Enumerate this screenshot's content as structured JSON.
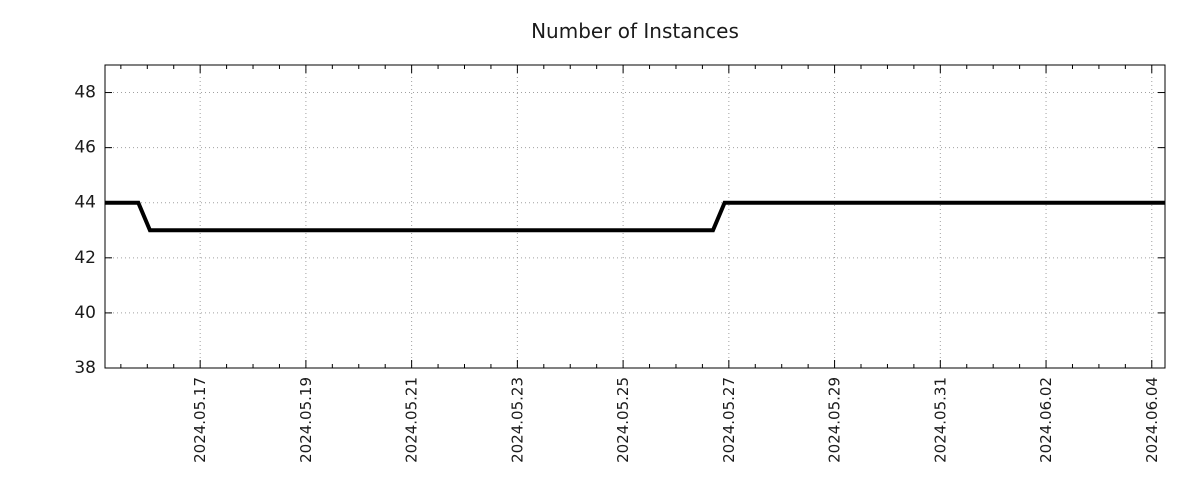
{
  "page": {
    "background": "#ffffff"
  },
  "chart_data": {
    "type": "line",
    "title": "Number of Instances",
    "xlabel": "",
    "ylabel": "",
    "grid": true,
    "legend_position": "none",
    "frame": "box-with-mirrored-ticks",
    "colors": {
      "line": "#000000",
      "grid": "#a0a0a0",
      "frame": "#000000",
      "text": "#1a1a1a",
      "background": "#ffffff"
    },
    "x_axis": {
      "kind": "datetime",
      "epoch": "2024-05-15 00:00",
      "range_days": [
        0.2,
        20.25
      ],
      "range_labels": [
        "2024.05.15 05:00",
        "2024.06.04 06:00"
      ],
      "minor_tick_interval_days": 0.5,
      "major_ticks": [
        {
          "days": 2,
          "label": "2024.05.17"
        },
        {
          "days": 4,
          "label": "2024.05.19"
        },
        {
          "days": 6,
          "label": "2024.05.21"
        },
        {
          "days": 8,
          "label": "2024.05.23"
        },
        {
          "days": 10,
          "label": "2024.05.25"
        },
        {
          "days": 12,
          "label": "2024.05.27"
        },
        {
          "days": 14,
          "label": "2024.05.29"
        },
        {
          "days": 16,
          "label": "2024.05.31"
        },
        {
          "days": 18,
          "label": "2024.06.02"
        },
        {
          "days": 20,
          "label": "2024.06.04"
        }
      ]
    },
    "y_axis": {
      "range": [
        38,
        49
      ],
      "major_ticks": [
        38,
        40,
        42,
        44,
        46,
        48
      ]
    },
    "series": [
      {
        "name": "Number of Instances",
        "color": "#000000",
        "line_width": 4,
        "points": [
          {
            "time": "2024.05.15 05:00",
            "days": 0.2,
            "value": 44
          },
          {
            "time": "2024.05.15 20:00",
            "days": 0.83,
            "value": 44
          },
          {
            "time": "2024.05.16 01:00",
            "days": 1.05,
            "value": 43
          },
          {
            "time": "2024.05.26 17:00",
            "days": 11.7,
            "value": 43
          },
          {
            "time": "2024.05.26 22:00",
            "days": 11.92,
            "value": 44
          },
          {
            "time": "2024.06.04 06:00",
            "days": 20.25,
            "value": 44
          }
        ]
      }
    ]
  }
}
